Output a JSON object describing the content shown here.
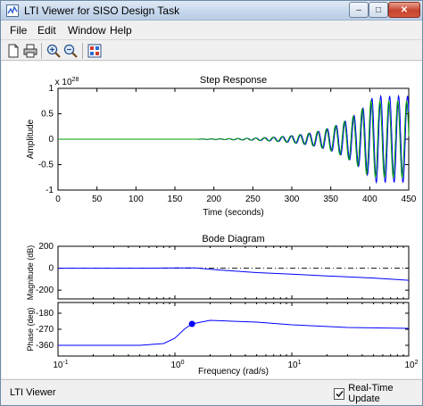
{
  "window": {
    "title": "LTI Viewer for SISO Design Task",
    "controls": {
      "minimize": "–",
      "maximize": "□",
      "close": "✕"
    }
  },
  "menu": {
    "items": [
      "File",
      "Edit",
      "Window",
      "Help"
    ]
  },
  "toolbar": {
    "buttons": [
      "new-icon",
      "print-icon",
      "zoom-in-icon",
      "zoom-out-icon",
      "plot-config-icon"
    ]
  },
  "status": {
    "text": "LTI Viewer",
    "realtime_label": "Real-Time Update",
    "realtime_checked": true
  },
  "colors": {
    "series_blue": "#0000ff",
    "series_green": "#00a000",
    "marker": "#0000ff",
    "zero_line": "#000000"
  },
  "chart_data": [
    {
      "type": "line",
      "title": "Step Response",
      "xlabel": "Time (seconds)",
      "ylabel": "Amplitude",
      "y_multiplier": "x 10^28",
      "x_ticks": [
        "0",
        "50",
        "100",
        "150",
        "200",
        "250",
        "300",
        "350",
        "400",
        "450"
      ],
      "y_ticks": [
        "1",
        "0.5",
        "0",
        "-0.5",
        "-1"
      ],
      "xlim": [
        0,
        450
      ],
      "ylim": [
        -1,
        1
      ],
      "series": [
        {
          "color": "#0000ff",
          "description": "oscillation growing near t=450, peak ~0.8e28"
        },
        {
          "color": "#00a000"
        }
      ]
    },
    {
      "type": "line",
      "title": "Bode Diagram",
      "xlabel": "Frequency  (rad/s)",
      "x_scale": "log",
      "x_ticks": [
        "10^-1",
        "10^0",
        "10^1",
        "10^2"
      ],
      "subplots": [
        {
          "ylabel": "Magnitude (dB)",
          "y_ticks": [
            "200",
            "0",
            "-200"
          ],
          "ylim": [
            -280,
            200
          ],
          "x": [
            0.1,
            0.5,
            1,
            1.5,
            2,
            5,
            10,
            20,
            50,
            100
          ],
          "y": [
            0,
            0,
            2,
            2,
            -10,
            -40,
            -55,
            -70,
            -90,
            -110
          ],
          "reference_line": 0
        },
        {
          "ylabel": "Phase (deg)",
          "y_ticks": [
            "-180",
            "-270",
            "-360"
          ],
          "ylim": [
            -420,
            -120
          ],
          "x": [
            0.1,
            0.5,
            0.8,
            1,
            1.2,
            1.4,
            2,
            5,
            10,
            30,
            100
          ],
          "y": [
            -360,
            -360,
            -350,
            -320,
            -270,
            -240,
            -220,
            -230,
            -245,
            -260,
            -265
          ],
          "marker": {
            "x": 1.4,
            "y": -240
          }
        }
      ]
    }
  ]
}
